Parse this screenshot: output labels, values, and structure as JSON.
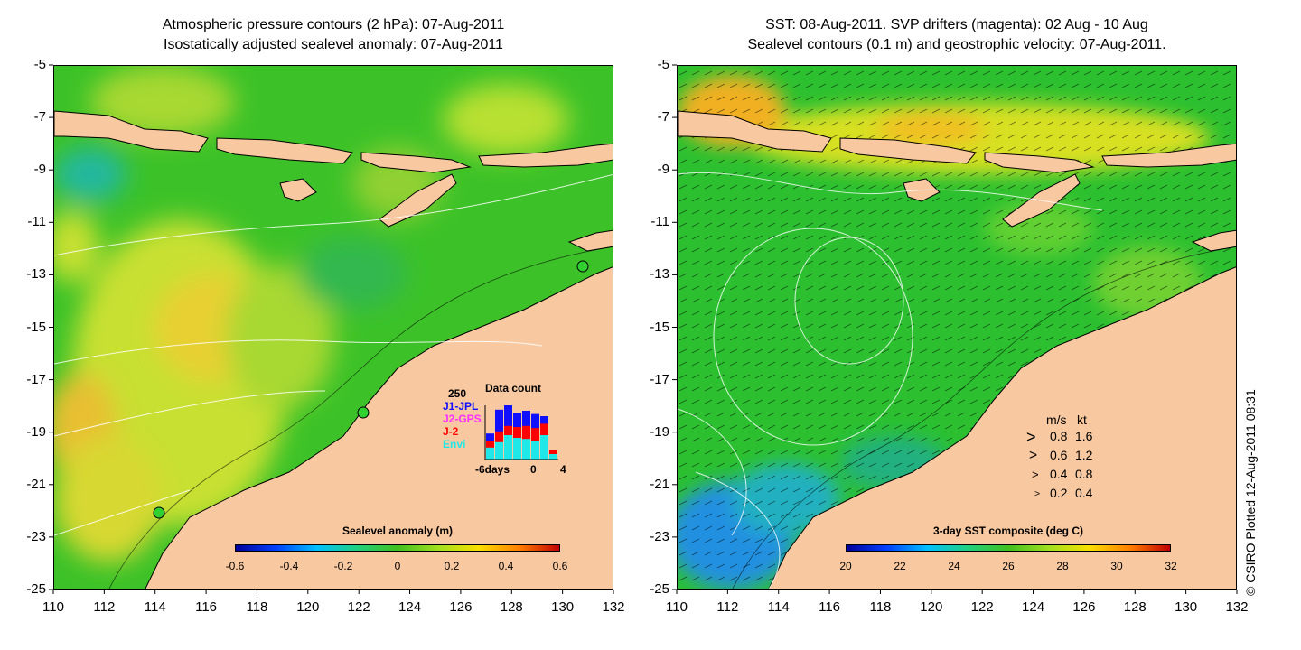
{
  "left_panel": {
    "title_line1": "Atmospheric pressure contours (2 hPa): 07-Aug-2011",
    "title_line2": "Isostatically adjusted sealevel anomaly: 07-Aug-2011",
    "colorbar": {
      "title": "Sealevel anomaly (m)",
      "ticks": [
        "-0.6",
        "-0.4",
        "-0.2",
        "0",
        "0.2",
        "0.4",
        "0.6"
      ]
    },
    "inset": {
      "title": "Data count",
      "ymax_label": "250",
      "missions": [
        {
          "label": "J1-JPL",
          "color": "#1010ff"
        },
        {
          "label": "J2-GPS",
          "color": "#ff30ff"
        },
        {
          "label": "J-2",
          "color": "#ff0000"
        },
        {
          "label": "Envi",
          "color": "#20e8e8"
        }
      ],
      "x_label_left": "-6days",
      "x_label_mid": "0",
      "x_label_right": "4",
      "bars": [
        {
          "envi": 0.22,
          "j2": 0.35,
          "j1": 0.48
        },
        {
          "envi": 0.32,
          "j2": 0.52,
          "j1": 0.92
        },
        {
          "envi": 0.45,
          "j2": 0.62,
          "j1": 1.0
        },
        {
          "envi": 0.4,
          "j2": 0.6,
          "j1": 0.86
        },
        {
          "envi": 0.38,
          "j2": 0.62,
          "j1": 0.9
        },
        {
          "envi": 0.35,
          "j2": 0.58,
          "j1": 0.84
        },
        {
          "envi": 0.45,
          "j2": 0.66,
          "j1": 0.8
        },
        {
          "envi": 0.1,
          "j2": 0.18,
          "j1": 0.18
        }
      ]
    }
  },
  "right_panel": {
    "title_line1": "SST: 08-Aug-2011. SVP drifters (magenta): 02 Aug - 10 Aug",
    "title_line2": "Sealevel contours (0.1 m) and geostrophic velocity: 07-Aug-2011.",
    "colorbar": {
      "title": "3-day SST composite (deg C)",
      "ticks": [
        "20",
        "22",
        "24",
        "26",
        "28",
        "30",
        "32"
      ]
    },
    "velocity_legend": {
      "header_ms": "m/s",
      "header_kt": "kt",
      "rows": [
        {
          "ms": "0.8",
          "kt": "1.6",
          "len": 1.0
        },
        {
          "ms": "0.6",
          "kt": "1.2",
          "len": 0.75
        },
        {
          "ms": "0.4",
          "kt": "0.8",
          "len": 0.5
        },
        {
          "ms": "0.2",
          "kt": "0.4",
          "len": 0.25
        }
      ]
    }
  },
  "axes": {
    "y_ticks": [
      "-5",
      "-7",
      "-9",
      "-11",
      "-13",
      "-15",
      "-17",
      "-19",
      "-21",
      "-23",
      "-25"
    ],
    "x_ticks": [
      "110",
      "112",
      "114",
      "116",
      "118",
      "120",
      "122",
      "124",
      "126",
      "128",
      "130",
      "132"
    ],
    "lon_range": [
      110,
      132
    ],
    "lat_range": [
      -25,
      -5
    ]
  },
  "credit": "© CSIRO Plotted 12-Aug-2011 08:31",
  "colors": {
    "land": "#f8c8a0",
    "ocean_left": "#40c020",
    "ocean_right": "#30c030"
  }
}
